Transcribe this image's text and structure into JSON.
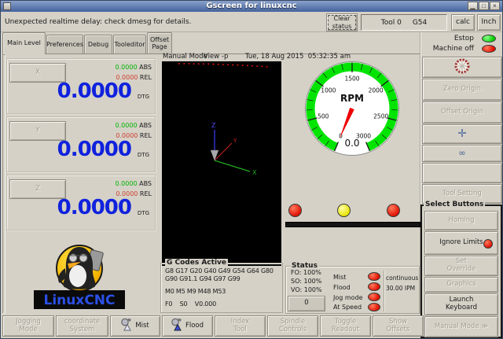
{
  "titlebar": {
    "title": "Gscreen for linuxcnc"
  },
  "icons": {
    "minimize": "▁",
    "maximize": "□",
    "close": "×",
    "infinity": "∞"
  },
  "topbar": {
    "message": "Unexpected realtime delay: check dmesg for details.",
    "clear_status": "Clear status",
    "tool": "Tool 0",
    "work_offset": "G54",
    "calc": "calc",
    "units": "Inch"
  },
  "tabs": {
    "main_level": "Main Level",
    "preferences": "Preferences",
    "debug": "Debug",
    "tooleditor": "Tooleditor",
    "offset_page": "Offset Page"
  },
  "dro": {
    "abs_label": "ABS",
    "rel_label": "REL",
    "dtg_label": "DTG",
    "axes": [
      {
        "name": "X",
        "abs": "0.0000",
        "rel": "0.0000",
        "dtg": "0.0000"
      },
      {
        "name": "Y",
        "abs": "0.0000",
        "rel": "0.0000",
        "dtg": "0.0000"
      },
      {
        "name": "Z",
        "abs": "0.0000",
        "rel": "0.0000",
        "dtg": "0.0000"
      }
    ]
  },
  "logo_text": "LinuxCNC",
  "viewport": {
    "mode": "Manual Mode",
    "view": "View -p",
    "datetime": "Tue, 18 Aug 2015  05:32:35 am",
    "axis_x": "X",
    "axis_y": "Y",
    "axis_z": "Z"
  },
  "gauge": {
    "label": "RPM",
    "value": "0.0",
    "min": 0,
    "max": 3000,
    "major_ticks": [
      0,
      500,
      1000,
      1500,
      2000,
      2500,
      3000
    ],
    "minor_step": 125,
    "needle_value": 0,
    "ring_color": "#00e400",
    "needle_color": "#ee0000"
  },
  "indicator_lights": [
    "red",
    "yellow",
    "red"
  ],
  "gcodes": {
    "title": "G Codes Active",
    "line1": "G8 G17 G20 G40 G49 G54 G64 G80",
    "line2": "G90 G91.1 G94 G97 G99",
    "mcodes": "M0 M5 M9 M48 M53",
    "feeds": "F0    S0    V0.000"
  },
  "status": {
    "title": "Status",
    "fo": "FO: 100%",
    "so": "SO: 100%",
    "vo": "VO: 100%",
    "spin_value": "0",
    "led_rows": [
      "Mist",
      "Flood",
      "Jog mode",
      "At Speed"
    ],
    "jog_mode": "continuous",
    "jog_rate": "30.00 IPM"
  },
  "right_panel": {
    "estop": "Estop",
    "machine_off": "Machine off",
    "zero_origin": "Zero Origin",
    "offset_origin": "Offset Origin",
    "tool_setting": "Tool Setting",
    "select_buttons": "Select Buttons",
    "homing": "Homing",
    "ignore_limits": "Ignore Limits",
    "set_override": "Set Override",
    "graphics": "Graphics",
    "launch_keyboard": "Launch Keyboard",
    "manual_mode": "Manual Mode ≫"
  },
  "bottom_bar": {
    "jogging_mode": "Jogging Mode",
    "coordinate_system": "coordinate System",
    "mist": "Mist",
    "flood": "Flood",
    "index_tool": "Index Tool",
    "spindle_controls": "Spindle Controls",
    "toggle_readout": "Toggle Readout",
    "show_offsets": "Show Offsets"
  },
  "colors": {
    "abs_green": "#00b400",
    "rel_red": "#d04030",
    "dtg_blue": "#1022dd",
    "led_red": "#e01000",
    "led_yellow": "#e8e400",
    "led_green": "#00cc00",
    "gauge_ring": "#00e400"
  }
}
